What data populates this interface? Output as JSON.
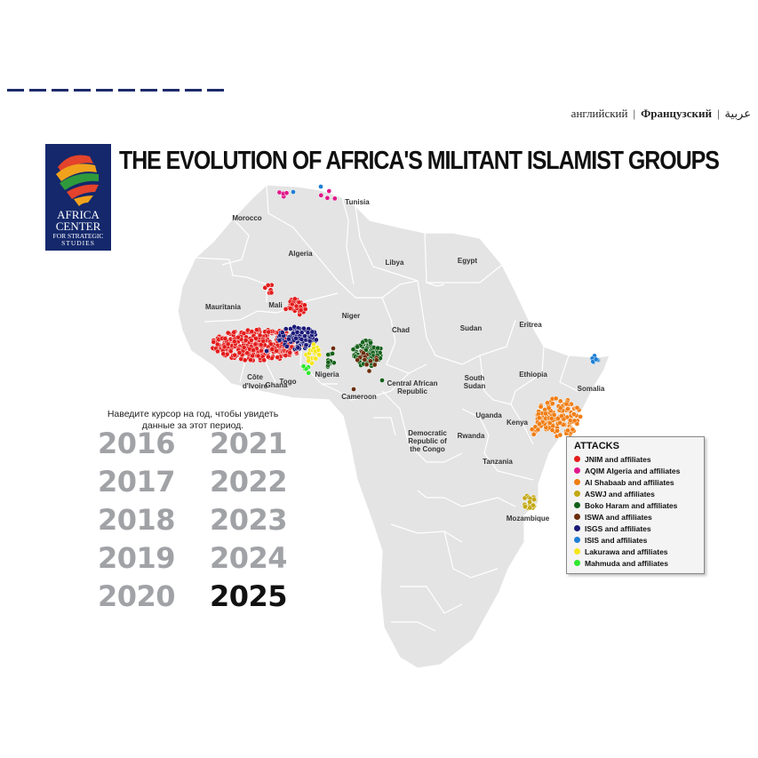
{
  "languages": [
    {
      "label": "английский",
      "bold": false
    },
    {
      "label": "Французский",
      "bold": true
    },
    {
      "label": "عربية",
      "bold": false
    }
  ],
  "logo": {
    "line1": "AFRICA",
    "line2": "CENTER",
    "line3": "FOR STRATEGIC",
    "line4": "STUDIES"
  },
  "title": "THE EVOLUTION OF AFRICA'S MILITANT ISLAMIST GROUPS",
  "hint": {
    "line1": "Наведите курсор на год, чтобы увидеть",
    "line2": "данные за этот период."
  },
  "years": [
    "2016",
    "2017",
    "2018",
    "2019",
    "2020",
    "2021",
    "2022",
    "2023",
    "2024",
    "2025"
  ],
  "active_year": "2025",
  "country_labels": [
    "Tunisia",
    "Morocco",
    "Algeria",
    "Libya",
    "Egypt",
    "Mauritania",
    "Mali",
    "Niger",
    "Chad",
    "Sudan",
    "Eritrea",
    "Ethiopia",
    "Somalia",
    "Nigeria",
    "Togo",
    "Côte",
    "d'Ivoire",
    "Ghana",
    "Cameroon",
    "Central African",
    "Republic",
    "South",
    "Sudan",
    "Uganda",
    "Kenya",
    "Democratic",
    "Republic of",
    "the Congo",
    "Rwanda",
    "Tanzania",
    "Mozambique"
  ],
  "legend": {
    "title": "ATTACKS",
    "items": [
      {
        "label": "JNIM and affiliates",
        "color": "#e31b1b"
      },
      {
        "label": "AQIM Algeria and affiliates",
        "color": "#e0178a"
      },
      {
        "label": "Al Shabaab and affiliates",
        "color": "#f07d12"
      },
      {
        "label": "ASWJ and affiliates",
        "color": "#c2a814"
      },
      {
        "label": "Boko Haram and affiliates",
        "color": "#13601a"
      },
      {
        "label": "ISWA and affiliates",
        "color": "#6b2d0c"
      },
      {
        "label": "ISGS and affiliates",
        "color": "#1b1a7a"
      },
      {
        "label": "ISIS and affiliates",
        "color": "#1e7fd4"
      },
      {
        "label": "Lakurawa and affiliates",
        "color": "#f5e61a"
      },
      {
        "label": "Mahmuda and affiliates",
        "color": "#2ee82e"
      }
    ]
  }
}
